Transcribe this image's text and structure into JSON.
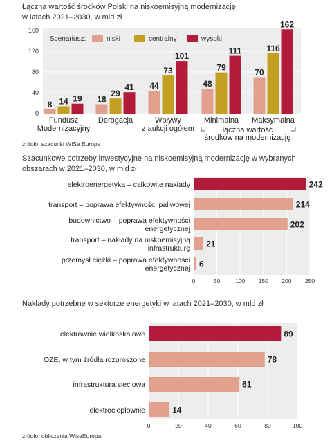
{
  "chart_data": [
    {
      "type": "bar",
      "title_lines": [
        "Łączna wartość środków Polski na niskoemisyjną modernizację",
        "w latach 2021–2030, w mld zł"
      ],
      "legend_title": "Scenariusz:",
      "categories": [
        [
          "Fundusz",
          "Modernizacyjny"
        ],
        [
          "Derogacja"
        ],
        [
          "Wpływy",
          "z aukcji ogółem"
        ],
        [
          "Minimalna"
        ],
        [
          "Maksymalna"
        ]
      ],
      "group_label": [
        "łączna wartość",
        "środków na modernizację"
      ],
      "series": [
        {
          "name": "niski",
          "color": "#e2a08e",
          "values": [
            8,
            18,
            44,
            48,
            70
          ]
        },
        {
          "name": "centralny",
          "color": "#c4a022",
          "values": [
            14,
            29,
            73,
            79,
            116
          ]
        },
        {
          "name": "wysoki",
          "color": "#b31b3b",
          "values": [
            19,
            41,
            101,
            111,
            162
          ]
        }
      ],
      "yticks": [
        0,
        40,
        80,
        120,
        160
      ],
      "ylim": [
        0,
        165
      ],
      "grid": true,
      "legend_position": "top",
      "source": "źródło: szacunki WiSe Europa"
    },
    {
      "type": "bar",
      "orientation": "horizontal",
      "title_lines": [
        "Szacunkowe potrzeby inwestycyjne na niskoemisyjną modernizację w wybranych",
        "obszarach w 2021–2030, w mld zł"
      ],
      "categories": [
        [
          "elektroenergetyka – całkowite nakłady"
        ],
        [
          "transport – poprawa efektywności paliwowej"
        ],
        [
          "budownictwo – poprawa efektywności",
          "energetycznej"
        ],
        [
          "transport – nakłady na niskoemisyjną",
          "infrastrukturę"
        ],
        [
          "przemysł ciężki – poprawa efektywności",
          "energetycznej"
        ]
      ],
      "values": [
        242,
        214,
        202,
        21,
        6
      ],
      "highlight_index": 0,
      "colors": {
        "highlight": "#b31b3b",
        "normal": "#e2a08e"
      },
      "xticks": [
        0,
        50,
        100,
        150,
        200,
        250
      ],
      "xlim": [
        0,
        250
      ],
      "grid": true
    },
    {
      "type": "bar",
      "orientation": "horizontal",
      "title_lines": [
        "Nakłady potrzebne w sektorze energetyki w latach 2021–2030, w mld zł"
      ],
      "categories": [
        [
          "elektrownie wielkoskalowe"
        ],
        [
          "OZE, w tym źródła rozproszone"
        ],
        [
          "infrastruktura sieciowa"
        ],
        [
          "elektrociepłownie"
        ]
      ],
      "values": [
        89,
        78,
        61,
        14
      ],
      "highlight_index": 0,
      "colors": {
        "highlight": "#b31b3b",
        "normal": "#e2a08e"
      },
      "xticks": [
        0,
        20,
        40,
        60,
        80,
        100
      ],
      "xlim": [
        0,
        100
      ],
      "grid": true,
      "source": "źródło: obliczenia WiseEuropa"
    }
  ]
}
